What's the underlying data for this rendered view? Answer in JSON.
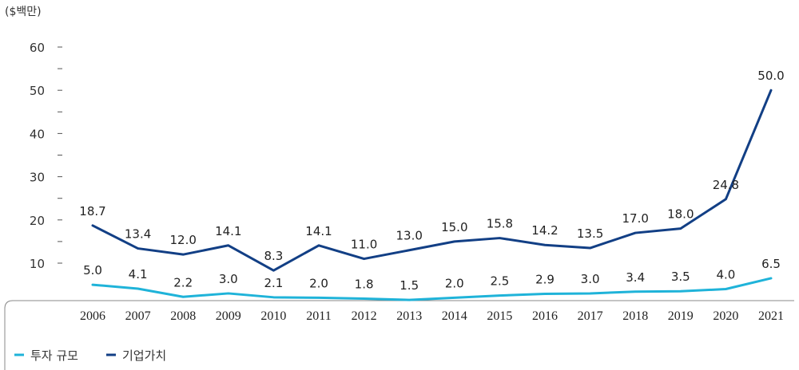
{
  "chart_data": {
    "type": "line",
    "title": "",
    "xlabel": "",
    "ylabel": "($백만)",
    "ylim": [
      0,
      60
    ],
    "yticks": [
      10,
      20,
      30,
      40,
      50,
      60
    ],
    "grid": false,
    "legend_position": "bottom-left",
    "categories": [
      "2006",
      "2007",
      "2008",
      "2009",
      "2010",
      "2011",
      "2012",
      "2013",
      "2014",
      "2015",
      "2016",
      "2017",
      "2018",
      "2019",
      "2020",
      "2021"
    ],
    "series": [
      {
        "name": "투자 규모",
        "color": "#1fb3d9",
        "values": [
          5.0,
          4.1,
          2.2,
          3.0,
          2.1,
          2.0,
          1.8,
          1.5,
          2.0,
          2.5,
          2.9,
          3.0,
          3.4,
          3.5,
          4.0,
          6.5
        ],
        "labels": [
          "5.0",
          "4.1",
          "2.2",
          "3.0",
          "2.1",
          "2.0",
          "1.8",
          "1.5",
          "2.0",
          "2.5",
          "2.9",
          "3.0",
          "3.4",
          "3.5",
          "4.0",
          "6.5"
        ]
      },
      {
        "name": "기업가치",
        "color": "#123f85",
        "values": [
          18.7,
          13.4,
          12.0,
          14.1,
          8.3,
          14.1,
          11.0,
          13.0,
          15.0,
          15.8,
          14.2,
          13.5,
          17.0,
          18.0,
          24.8,
          50.0
        ],
        "labels": [
          "18.7",
          "13.4",
          "12.0",
          "14.1",
          "8.3",
          "14.1",
          "11.0",
          "13.0",
          "15.0",
          "15.8",
          "14.2",
          "13.5",
          "17.0",
          "18.0",
          "24.8",
          "50.0"
        ]
      }
    ]
  }
}
